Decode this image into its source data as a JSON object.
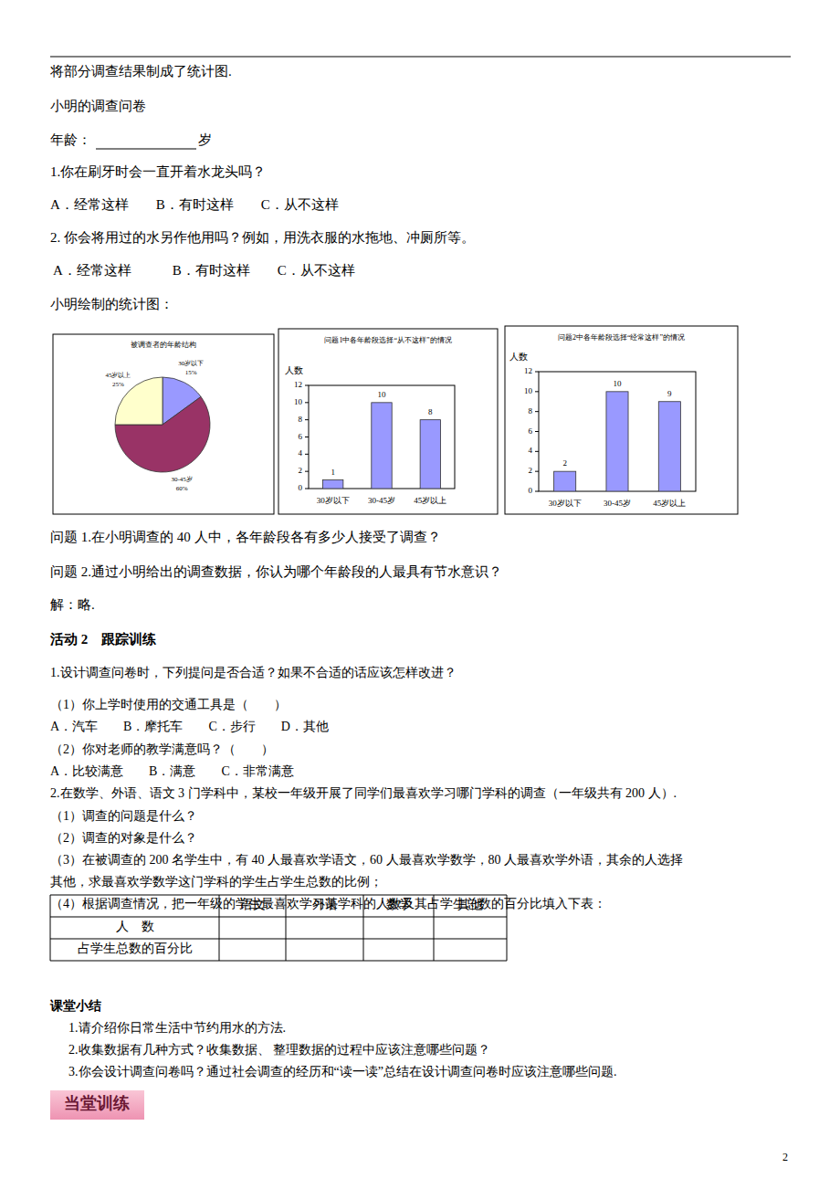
{
  "document": {
    "header_line": "将部分调查结果制成了统计图.",
    "questionnaire_title": "小明的调查问卷",
    "age_label": "年龄：",
    "age_unit": "岁",
    "questionnaire_lines": [
      "1.你在刷牙时会一直开着水龙头吗？",
      "A．经常这样　　B．有时这样　　C．从不这样",
      "2. 你会将用过的水另作他用吗？例如，用洗衣服的水拖地、冲厕所等。",
      " A．经常这样　　　B．有时这样　　C．从不这样"
    ],
    "charts_caption": "小明绘制的统计图：",
    "questions": [
      "问题 1.在小明调查的 40 人中，各年龄段各有多少人接受了调查？",
      "问题 2.通过小明给出的调查数据，你认为哪个年龄段的人最具有节水意识？",
      "解：略."
    ],
    "activity_title": "活动 2　跟踪训练",
    "exercise_lines": [
      "1.设计调查问卷时，下列提问是否合适？如果不合适的话应该怎样改进？",
      "（1）你上学时使用的交通工具是（　　）",
      "A．汽车　　B．摩托车　　C．步行　　D．其他",
      "（2）你对老师的教学满意吗？（　　）",
      "A．比较满意　　B．满意　　C．非常满意",
      "2.在数学、外语、语文 3 门学科中，某校一年级开展了同学们最喜欢学习哪门学科的调查（一年级共有 200 人）.",
      "（1）调查的问题是什么？",
      "（2）调查的对象是什么？",
      "（3）在被调查的 200 名学生中，有 40 人最喜欢学语文，60 人最喜欢学数学，80 人最喜欢学外语，其余的人选择",
      "其他，求最喜欢学数学这门学科的学生占学生总数的比例；",
      "（4）根据调查情况，把一年级的学生最喜欢学习某学科的人数及其占学生总数的百分比填入下表："
    ],
    "table": {
      "columns": [
        "语文",
        "外语",
        "数学",
        "其他"
      ],
      "row_labels": [
        "人　数",
        "占学生总数的百分比"
      ]
    },
    "summary_title": "课堂小结",
    "summary_lines": [
      "1.请介绍你日常生活中节约用水的方法.",
      "2.收集数据有几种方式？收集数据、 整理数据的过程中应该注意哪些问题？",
      "3.你会设计调查问卷吗？通过社会调查的经历和“读一读”总结在设计调查问卷时应该注意哪些问题."
    ],
    "badge": "当堂训练",
    "page_number": "2"
  },
  "chart_data": [
    {
      "type": "pie",
      "title": "被调查者的年龄结构",
      "categories": [
        "30岁以下",
        "30-45岁",
        "45岁以上"
      ],
      "values": [
        15,
        60,
        25
      ],
      "value_labels": [
        "15%",
        "60%",
        "25%"
      ],
      "colors": [
        "#9999ff",
        "#993366",
        "#ffffcc"
      ]
    },
    {
      "type": "bar",
      "title": "问题1中各年龄段选择“从不这样”的情况",
      "ylabel": "人数",
      "categories": [
        "30岁以下",
        "30-45岁",
        "45岁以上"
      ],
      "values": [
        1,
        10,
        8
      ],
      "color": "#9999ff",
      "ylim": [
        0,
        12
      ],
      "yticks": [
        0,
        2,
        4,
        6,
        8,
        10,
        12
      ],
      "grid": false,
      "data_labels": true
    },
    {
      "type": "bar",
      "title": "问题2中各年龄段选择“经常这样”的情况",
      "ylabel": "人数",
      "categories": [
        "30岁以下",
        "30-45岁",
        "45岁以上"
      ],
      "values": [
        2,
        10,
        9
      ],
      "color": "#9999ff",
      "ylim": [
        0,
        12
      ],
      "yticks": [
        0,
        2,
        4,
        6,
        8,
        10,
        12
      ],
      "grid": false,
      "data_labels": true
    }
  ]
}
